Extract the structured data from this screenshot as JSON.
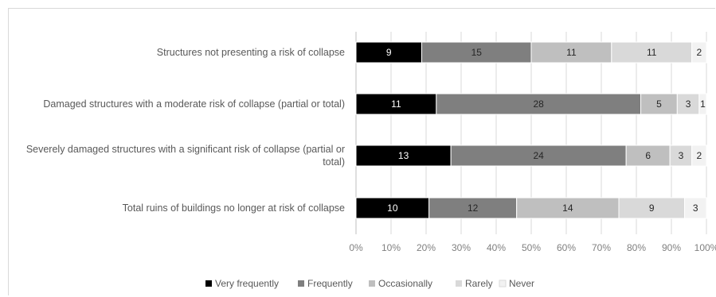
{
  "chart_data": {
    "type": "bar",
    "orientation": "horizontal",
    "stacked": "percent",
    "categories": [
      "Structures not presenting a risk of collapse",
      "Damaged structures with a moderate risk of collapse (partial or total)",
      "Severely damaged structures with a significant risk of collapse (partial or total)",
      "Total ruins of buildings no longer at risk of collapse"
    ],
    "category_lines": [
      [
        "Structures not presenting a risk of collapse"
      ],
      [
        "Damaged structures with a moderate risk of collapse (partial or total)"
      ],
      [
        "Severely damaged structures with a significant risk of collapse (partial or",
        "total)"
      ],
      [
        "Total ruins of buildings no longer at risk of collapse"
      ]
    ],
    "series": [
      {
        "name": "Very frequently",
        "color": "#000000",
        "label_color": "#ffffff",
        "values": [
          9,
          11,
          13,
          10
        ]
      },
      {
        "name": "Frequently",
        "color": "#7f7f7f",
        "label_color": "#262626",
        "values": [
          15,
          28,
          24,
          12
        ]
      },
      {
        "name": "Occasionally",
        "color": "#bfbfbf",
        "label_color": "#262626",
        "values": [
          11,
          5,
          6,
          14
        ]
      },
      {
        "name": "Rarely",
        "color": "#d9d9d9",
        "label_color": "#262626",
        "values": [
          11,
          3,
          3,
          9
        ]
      },
      {
        "name": "Never",
        "color": "#f2f2f2",
        "label_color": "#262626",
        "values": [
          2,
          1,
          2,
          3
        ]
      }
    ],
    "x_ticks": [
      "0%",
      "10%",
      "20%",
      "30%",
      "40%",
      "50%",
      "60%",
      "70%",
      "80%",
      "90%",
      "100%"
    ],
    "xlim": [
      0,
      100
    ],
    "grid": true,
    "legend": "bottom"
  }
}
